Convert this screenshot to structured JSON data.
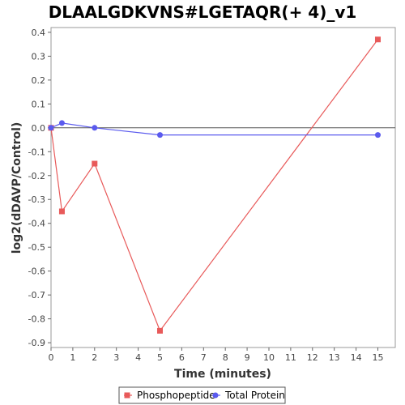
{
  "chart_data": {
    "type": "line",
    "title": "DLAALGDKVNS#LGETAQR(+ 4)_v1",
    "xlabel": "Time (minutes)",
    "ylabel": "log2(dDAVP/Control)",
    "xlim": [
      0,
      15.8
    ],
    "ylim": [
      -0.92,
      0.42
    ],
    "x_ticks": [
      0,
      1,
      2,
      3,
      4,
      5,
      6,
      7,
      8,
      9,
      10,
      11,
      12,
      13,
      14,
      15
    ],
    "y_ticks": [
      0.4,
      0.3,
      0.2,
      0.1,
      0.0,
      -0.1,
      -0.2,
      -0.3,
      -0.4,
      -0.5,
      -0.6,
      -0.7,
      -0.8,
      -0.9
    ],
    "x_tick_labels": [
      "0",
      "1",
      "2",
      "3",
      "4",
      "5",
      "6",
      "7",
      "8",
      "9",
      "10",
      "11",
      "12",
      "13",
      "14",
      "15"
    ],
    "y_tick_labels": [
      "0.4",
      "0.3",
      "0.2",
      "0.1",
      "0.0",
      "-0.1",
      "-0.2",
      "-0.3",
      "-0.4",
      "-0.5",
      "-0.6",
      "-0.7",
      "-0.8",
      "-0.9"
    ],
    "grid": false,
    "zero_line": true,
    "legend_position": "bottom",
    "series": [
      {
        "name": "Phosphopeptide",
        "color": "#e85a5a",
        "marker": "square",
        "x": [
          0,
          0.5,
          2,
          5,
          15
        ],
        "y": [
          0.0,
          -0.35,
          -0.15,
          -0.85,
          0.37
        ]
      },
      {
        "name": "Total Protein",
        "color": "#5a5aee",
        "marker": "circle",
        "x": [
          0,
          0.5,
          2,
          5,
          15
        ],
        "y": [
          0.0,
          0.02,
          0.0,
          -0.03,
          -0.03
        ]
      }
    ]
  }
}
